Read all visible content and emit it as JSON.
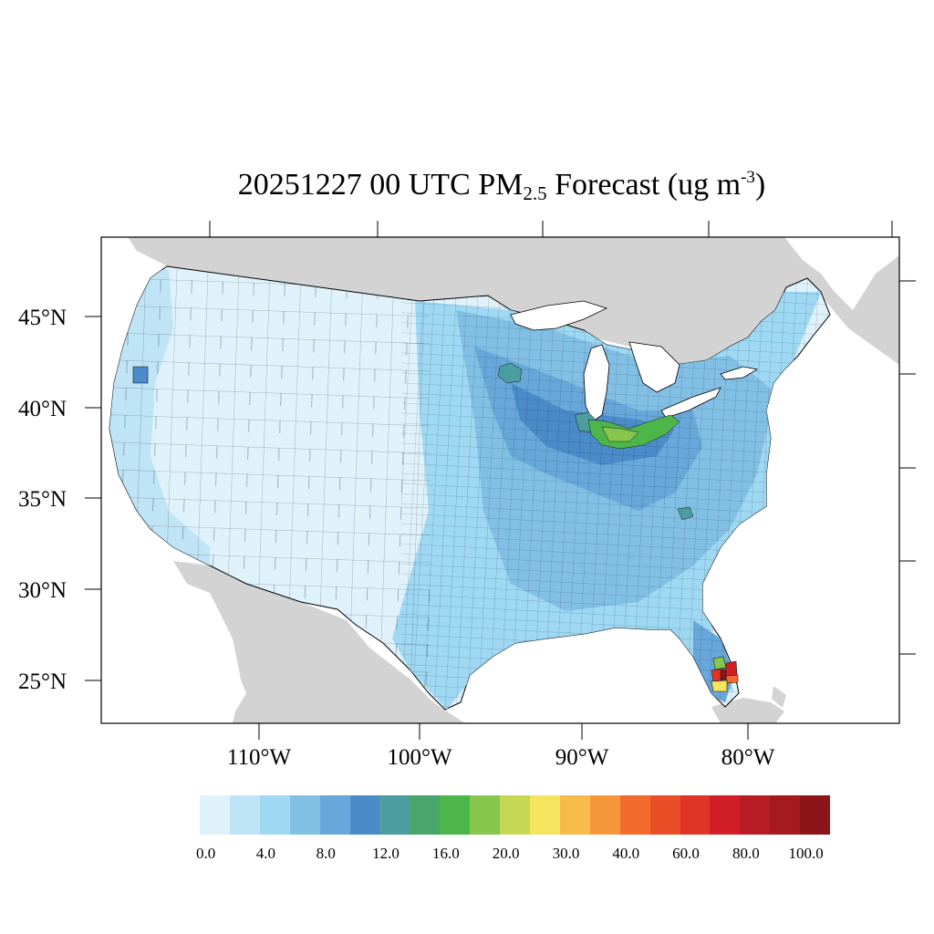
{
  "title": {
    "prefix": "20251227 00 UTC PM",
    "subscript": "2.5",
    "middle": " Forecast (ug m",
    "superscript": "-3",
    "suffix": ")"
  },
  "map": {
    "projection": "lambert-conformal",
    "region": "Contiguous United States",
    "variable": "PM2.5",
    "units": "ug m-3",
    "land_outside_domain_color": "#d3d3d3",
    "water_color": "#ffffff",
    "lat_labels": [
      "45°N",
      "40°N",
      "35°N",
      "30°N",
      "25°N"
    ],
    "lon_labels": [
      "110°W",
      "100°W",
      "90°W",
      "80°W"
    ],
    "hotspots": [
      {
        "place": "South Florida",
        "range": "20.0–80.0"
      },
      {
        "place": "Northern Indiana / Ohio",
        "range": "16.0–20.0"
      },
      {
        "place": "Minneapolis area",
        "range": "12.0–16.0"
      }
    ]
  },
  "colorbar": {
    "colors": [
      "#dff2fb",
      "#bfe4f6",
      "#9ed8f3",
      "#82bfe5",
      "#67a7d9",
      "#4a8bc9",
      "#4b9da0",
      "#49a66b",
      "#4db64a",
      "#87c64c",
      "#c6d756",
      "#f5e45e",
      "#f7bb4a",
      "#f6963b",
      "#f36b2c",
      "#ea4e27",
      "#e03426",
      "#d21f27",
      "#b81c24",
      "#a41a1e",
      "#8b1518"
    ],
    "labels": [
      "0.0",
      "4.0",
      "8.0",
      "12.0",
      "16.0",
      "20.0",
      "30.0",
      "40.0",
      "60.0",
      "80.0",
      "100.0"
    ]
  }
}
